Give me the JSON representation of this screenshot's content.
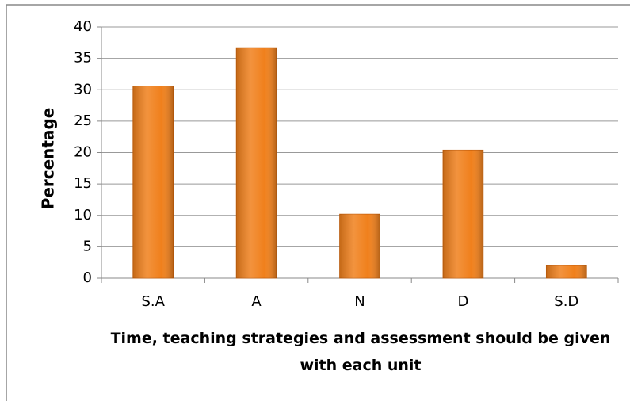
{
  "chart_data": {
    "type": "bar",
    "x_label": "Time, teaching strategies and assessment should be given with each unit",
    "y_label": "Percentage",
    "categories": [
      "S.A",
      "A",
      "N",
      "D",
      "S.D"
    ],
    "values": [
      30.6,
      36.7,
      10.2,
      20.4,
      2
    ],
    "color": "#f0801c",
    "ylim": [
      0,
      40
    ],
    "yticks": [
      0,
      5,
      10,
      15,
      20,
      25,
      30,
      35,
      40
    ],
    "grid": true
  }
}
